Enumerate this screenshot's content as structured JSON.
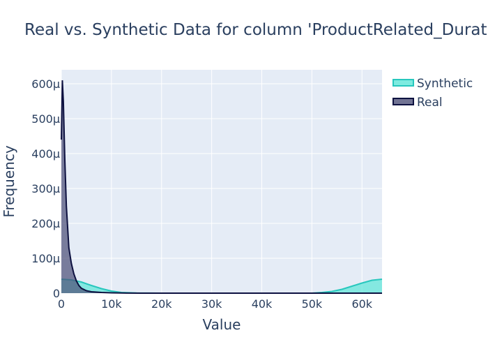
{
  "chart_data": {
    "type": "area",
    "title": "Real vs. Synthetic Data for column 'ProductRelated_Duration'",
    "xlabel": "Value",
    "ylabel": "Frequency",
    "xlim": [
      0,
      64000
    ],
    "ylim": [
      0,
      0.00064
    ],
    "x_ticks": [
      {
        "value": 0,
        "label": "0"
      },
      {
        "value": 10000,
        "label": "10k"
      },
      {
        "value": 20000,
        "label": "20k"
      },
      {
        "value": 30000,
        "label": "30k"
      },
      {
        "value": 40000,
        "label": "40k"
      },
      {
        "value": 50000,
        "label": "50k"
      },
      {
        "value": 60000,
        "label": "60k"
      }
    ],
    "y_ticks": [
      {
        "value": 0,
        "label": "0"
      },
      {
        "value": 0.0001,
        "label": "100μ"
      },
      {
        "value": 0.0002,
        "label": "200μ"
      },
      {
        "value": 0.0003,
        "label": "300μ"
      },
      {
        "value": 0.0004,
        "label": "400μ"
      },
      {
        "value": 0.0005,
        "label": "500μ"
      },
      {
        "value": 0.0006,
        "label": "600μ"
      }
    ],
    "grid": true,
    "legend_position": "top-right",
    "series": [
      {
        "name": "Synthetic",
        "line_color": "#27c7bd",
        "fill_color": "#5ee6d8",
        "x": [
          0,
          2000,
          4000,
          6000,
          8000,
          10000,
          12000,
          15000,
          20000,
          30000,
          40000,
          50000,
          52000,
          54000,
          56000,
          58000,
          60000,
          62000,
          64000
        ],
        "values": [
          4e-05,
          3.8e-05,
          3.2e-05,
          2.2e-05,
          1.3e-05,
          6e-06,
          2e-06,
          5e-07,
          0,
          0,
          0,
          0,
          2e-06,
          5e-06,
          1.1e-05,
          2e-05,
          2.9e-05,
          3.7e-05,
          4e-05
        ]
      },
      {
        "name": "Real",
        "line_color": "#0d1140",
        "fill_color": "#4e5078",
        "x": [
          0,
          200,
          400,
          700,
          1000,
          1500,
          2000,
          2500,
          3000,
          3500,
          4000,
          5000,
          6000,
          8000,
          10000,
          13000,
          16000,
          20000,
          64000
        ],
        "values": [
          0.00044,
          0.00061,
          0.00055,
          0.00038,
          0.00025,
          0.00013,
          8.5e-05,
          5.5e-05,
          3.5e-05,
          2.2e-05,
          1.4e-05,
          7e-06,
          4e-06,
          2e-06,
          1e-06,
          3e-07,
          0,
          0,
          0
        ]
      }
    ]
  }
}
